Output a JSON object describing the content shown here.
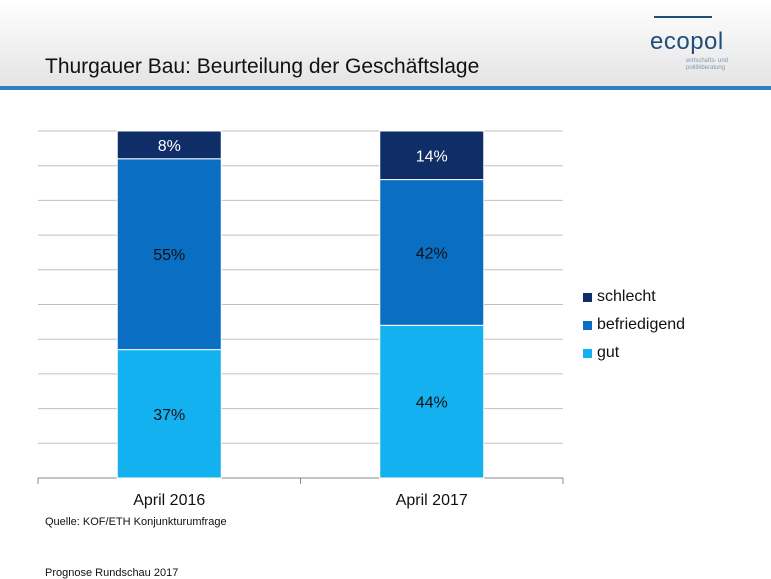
{
  "header": {
    "title": "Thurgauer Bau: Beurteilung der Geschäftslage",
    "logo_text": "ecopol",
    "logo_sub1": "wirtschafts- und",
    "logo_sub2": "politikberatung"
  },
  "colors": {
    "schlecht": "#0f2d67",
    "befriedigend": "#0a6ec2",
    "gut": "#13b1ef",
    "accent": "#2f7fc1",
    "grid": "#c0c0c0"
  },
  "chart_data": {
    "type": "bar",
    "stacked": true,
    "title": "Thurgauer Bau: Beurteilung der Geschäftslage",
    "categories": [
      "April 2016",
      "April 2017"
    ],
    "series": [
      {
        "name": "gut",
        "values": [
          37,
          44
        ],
        "labels": [
          "37%",
          "44%"
        ]
      },
      {
        "name": "befriedigend",
        "values": [
          55,
          42
        ],
        "labels": [
          "55%",
          "42%"
        ]
      },
      {
        "name": "schlecht",
        "values": [
          8,
          14
        ],
        "labels": [
          "8%",
          "14%"
        ]
      }
    ],
    "ylim": [
      0,
      100
    ],
    "grid": true,
    "legend_position": "right",
    "legend": [
      "schlecht",
      "befriedigend",
      "gut"
    ]
  },
  "source": "Quelle: KOF/ETH Konjunkturumfrage",
  "footer": "Prognose Rundschau 2017"
}
